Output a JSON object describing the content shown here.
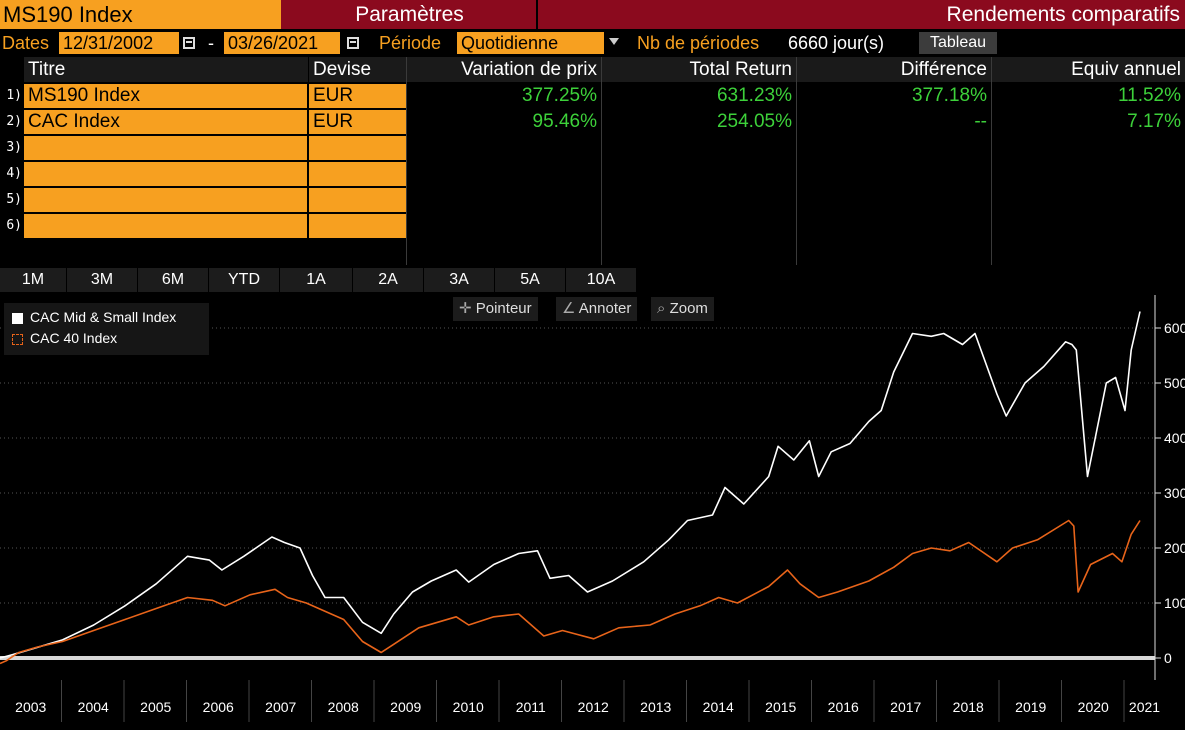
{
  "header": {
    "ticker": "MS190 Index",
    "params": "Paramètres",
    "title": "Rendements comparatifs"
  },
  "dates": {
    "label": "Dates",
    "start": "12/31/2002",
    "sep": "-",
    "end": "03/26/2021",
    "period_label": "Période",
    "period_value": "Quotidienne",
    "nb_label": "Nb de périodes",
    "nb_value": "6660 jour(s)",
    "tableau": "Tableau"
  },
  "table": {
    "headers": [
      "Titre",
      "Devise",
      "Variation de prix",
      "Total Return",
      "Différence",
      "Equiv annuel"
    ],
    "rownums": [
      "1)",
      "2)",
      "3)",
      "4)",
      "5)",
      "6)"
    ],
    "rows": [
      {
        "title": "MS190 Index",
        "currency": "EUR",
        "price": "377.25%",
        "total": "631.23%",
        "diff": "377.18%",
        "annual": "11.52%"
      },
      {
        "title": "CAC Index",
        "currency": "EUR",
        "price": "95.46%",
        "total": "254.05%",
        "diff": "--",
        "annual": "7.17%"
      }
    ]
  },
  "periods": [
    "1M",
    "3M",
    "6M",
    "YTD",
    "1A",
    "2A",
    "3A",
    "5A",
    "10A"
  ],
  "tools": {
    "pointer": "Pointeur",
    "annotate": "Annoter",
    "zoom": "Zoom"
  },
  "icons": [
    "calendar-icon",
    "dropdown-arrow-icon",
    "crosshair-icon",
    "pencil-icon",
    "magnifier-icon"
  ],
  "colors": {
    "orange": "#f7a020",
    "darkred": "#8b0a1e",
    "green": "#3dd13a",
    "cac40": "#e8641a"
  },
  "chart_data": {
    "type": "line",
    "legend": [
      "CAC Mid & Small Index",
      "CAC 40 Index"
    ],
    "legend_position": "top-left",
    "y_ticks": [
      0,
      100,
      200,
      300,
      400,
      500,
      600
    ],
    "ylim": [
      -40,
      660
    ],
    "x_ticks": [
      "2003",
      "2004",
      "2005",
      "2006",
      "2007",
      "2008",
      "2009",
      "2010",
      "2011",
      "2012",
      "2013",
      "2014",
      "2015",
      "2016",
      "2017",
      "2018",
      "2019",
      "2020",
      "2021"
    ],
    "xlim": [
      2003.0,
      2021.24
    ],
    "series": [
      {
        "name": "CAC Mid & Small Index",
        "color": "#ffffff",
        "x": [
          2003.0,
          2003.1,
          2003.2,
          2003.5,
          2004.0,
          2004.5,
          2005.0,
          2005.5,
          2006.0,
          2006.35,
          2006.55,
          2006.9,
          2007.35,
          2007.55,
          2007.8,
          2008.0,
          2008.2,
          2008.5,
          2008.8,
          2009.1,
          2009.3,
          2009.6,
          2009.9,
          2010.3,
          2010.5,
          2010.9,
          2011.3,
          2011.6,
          2011.8,
          2012.1,
          2012.4,
          2012.8,
          2013.3,
          2013.7,
          2014.0,
          2014.4,
          2014.6,
          2014.9,
          2015.3,
          2015.45,
          2015.7,
          2015.95,
          2016.1,
          2016.3,
          2016.6,
          2016.9,
          2017.1,
          2017.3,
          2017.6,
          2017.9,
          2018.1,
          2018.4,
          2018.6,
          2018.95,
          2019.1,
          2019.4,
          2019.7,
          2020.05,
          2020.15,
          2020.22,
          2020.4,
          2020.7,
          2020.85,
          2021.0,
          2021.1,
          2021.24
        ],
        "values": [
          0,
          3,
          6,
          16,
          33,
          60,
          95,
          135,
          185,
          178,
          160,
          185,
          220,
          210,
          200,
          150,
          110,
          110,
          65,
          45,
          80,
          120,
          140,
          160,
          138,
          170,
          190,
          195,
          145,
          150,
          120,
          140,
          175,
          215,
          250,
          260,
          310,
          280,
          330,
          385,
          360,
          395,
          330,
          375,
          390,
          430,
          450,
          520,
          590,
          585,
          590,
          570,
          590,
          480,
          440,
          500,
          530,
          575,
          570,
          560,
          330,
          500,
          510,
          450,
          560,
          630
        ]
      },
      {
        "name": "CAC 40 Index",
        "color": "#e8641a",
        "x": [
          2003.0,
          2003.1,
          2003.3,
          2003.6,
          2004.0,
          2004.5,
          2005.0,
          2005.5,
          2006.0,
          2006.4,
          2006.6,
          2007.0,
          2007.4,
          2007.6,
          2007.9,
          2008.1,
          2008.5,
          2008.8,
          2009.1,
          2009.3,
          2009.7,
          2010.0,
          2010.3,
          2010.5,
          2010.9,
          2011.3,
          2011.7,
          2012.0,
          2012.5,
          2012.9,
          2013.4,
          2013.8,
          2014.2,
          2014.5,
          2014.8,
          2015.3,
          2015.6,
          2015.8,
          2016.1,
          2016.4,
          2016.9,
          2017.3,
          2017.6,
          2017.9,
          2018.2,
          2018.5,
          2018.95,
          2019.2,
          2019.6,
          2020.1,
          2020.18,
          2020.25,
          2020.45,
          2020.8,
          2020.95,
          2021.1,
          2021.24
        ],
        "values": [
          -10,
          -5,
          10,
          20,
          30,
          50,
          70,
          90,
          110,
          105,
          95,
          115,
          125,
          110,
          100,
          90,
          70,
          30,
          10,
          25,
          55,
          65,
          75,
          60,
          75,
          80,
          40,
          50,
          35,
          55,
          60,
          80,
          95,
          110,
          100,
          130,
          160,
          135,
          110,
          120,
          140,
          165,
          190,
          200,
          195,
          210,
          175,
          200,
          215,
          250,
          240,
          120,
          170,
          190,
          175,
          225,
          250
        ]
      }
    ]
  }
}
